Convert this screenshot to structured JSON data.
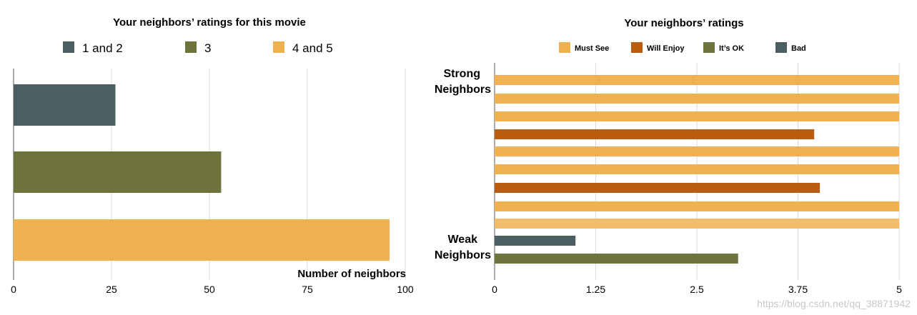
{
  "colors": {
    "slate": "#4b5f63",
    "olive": "#6d733a",
    "gold": "#efb152",
    "lightgold": "#f2bd6b",
    "rust": "#bb5d10",
    "grid": "#d9d9d9",
    "axis": "#555555"
  },
  "watermark": "https://blog.csdn.net/qq_38871942",
  "chart_data": [
    {
      "type": "bar",
      "orientation": "horizontal",
      "title": "Your neighbors’ ratings for this movie",
      "xlabel": "Number of neighbors",
      "ylabel": "",
      "xlim": [
        0,
        100
      ],
      "xticks": [
        "0",
        "25",
        "50",
        "75",
        "100"
      ],
      "legend": [
        {
          "label": "1 and 2",
          "color": "#4b5f63"
        },
        {
          "label": "3",
          "color": "#6d733a"
        },
        {
          "label": "4 and 5",
          "color": "#efb152"
        }
      ],
      "categories": [
        "1 and 2",
        "3",
        "4 and 5"
      ],
      "values": [
        26,
        53,
        96
      ],
      "colors": [
        "#4b5f63",
        "#6d733a",
        "#efb152"
      ]
    },
    {
      "type": "bar",
      "orientation": "horizontal",
      "title": "Your neighbors’ ratings",
      "xlabel": "",
      "ylabel": "",
      "xlim": [
        0,
        5
      ],
      "xticks": [
        "0",
        "1.25",
        "2.5",
        "3.75",
        "5"
      ],
      "legend": [
        {
          "label": "Must See",
          "color": "#efb152"
        },
        {
          "label": "Will Enjoy",
          "color": "#bb5d10"
        },
        {
          "label": "It’s OK",
          "color": "#6d733a"
        },
        {
          "label": "Bad",
          "color": "#4b5f63"
        }
      ],
      "y_group_labels": {
        "top": [
          "Strong",
          "Neighbors"
        ],
        "bottom": [
          "Weak",
          "Neighbors"
        ]
      },
      "series": [
        {
          "rating": "Must See",
          "value": 5
        },
        {
          "rating": "Must See",
          "value": 5
        },
        {
          "rating": "Must See",
          "value": 5
        },
        {
          "rating": "Will Enjoy",
          "value": 3.95
        },
        {
          "rating": "Must See",
          "value": 5
        },
        {
          "rating": "Must See",
          "value": 5
        },
        {
          "rating": "Will Enjoy",
          "value": 4.02
        },
        {
          "rating": "Must See",
          "value": 5
        },
        {
          "rating": "Must See",
          "value": 5
        },
        {
          "rating": "Bad",
          "value": 1.0
        },
        {
          "rating": "It’s OK",
          "value": 3.01
        }
      ]
    }
  ]
}
